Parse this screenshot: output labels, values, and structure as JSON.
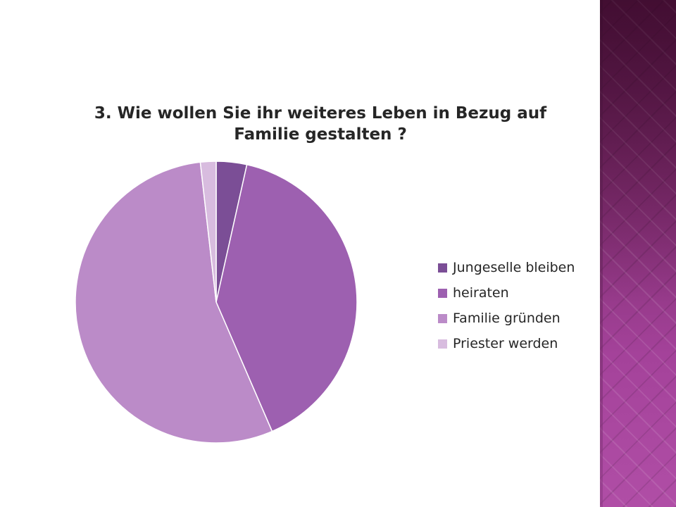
{
  "chart_data": {
    "type": "pie",
    "title_lines": [
      "3. Wie wollen Sie ihr weiteres Leben in Bezug auf",
      "Familie gestalten ?"
    ],
    "categories": [
      "Jungeselle bleiben",
      "heiraten",
      "Familie gründen",
      "Priester werden"
    ],
    "values": [
      3.5,
      40,
      54.7,
      1.8
    ],
    "colors": [
      "#7b4e96",
      "#9d60b0",
      "#bb8bc8",
      "#d8bcdf"
    ],
    "legend_position": "right",
    "start_angle": "top, clockwise"
  },
  "legend": {
    "items": [
      {
        "label": "Jungeselle bleiben",
        "color": "#7b4e96"
      },
      {
        "label": "heiraten",
        "color": "#9d60b0"
      },
      {
        "label": "Familie gründen",
        "color": "#bb8bc8"
      },
      {
        "label": "Priester werden",
        "color": "#d8bcdf"
      }
    ]
  },
  "theme": {
    "accent": "#a4429a"
  }
}
